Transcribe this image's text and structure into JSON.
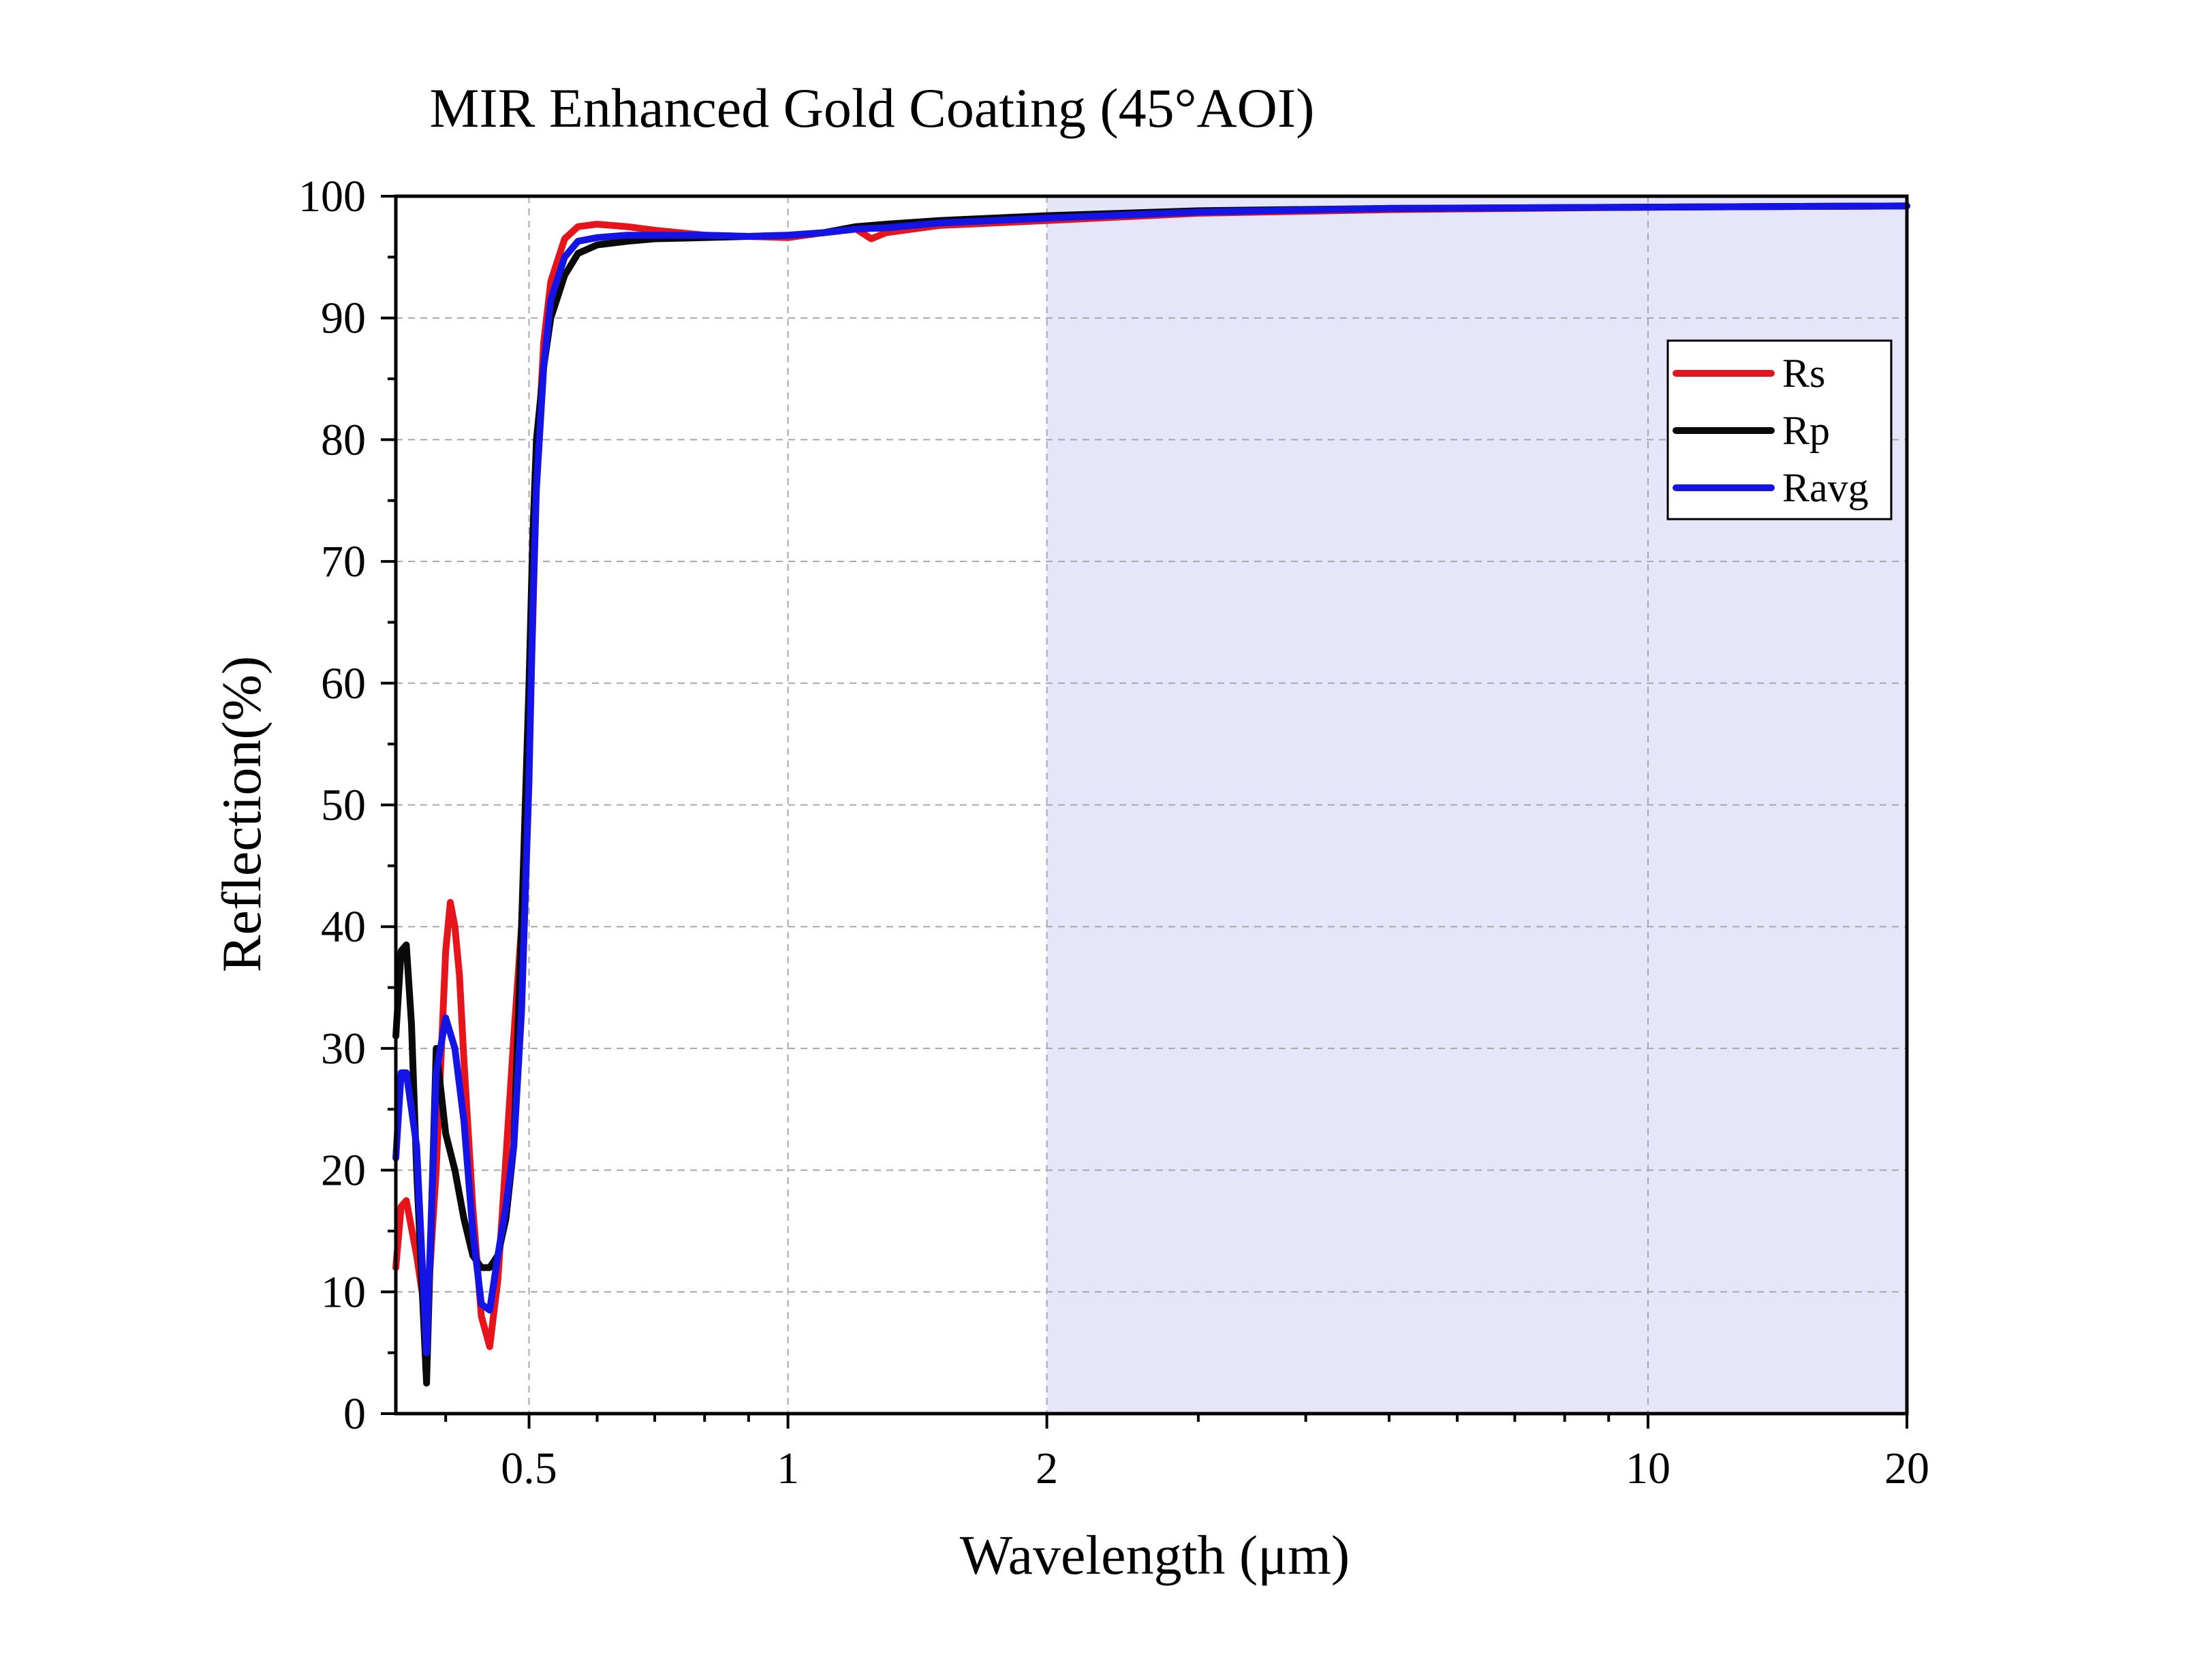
{
  "chart_data": {
    "type": "line",
    "title": "MIR Enhanced Gold Coating (45°AOI)",
    "xlabel": "Wavelength (μm)",
    "ylabel": "Reflection(%)",
    "x_scale": "log",
    "xlim": [
      0.35,
      20
    ],
    "ylim": [
      0,
      100
    ],
    "x_ticks": [
      0.5,
      1,
      2,
      10,
      20
    ],
    "x_tick_labels": [
      "0.5",
      "1",
      "2",
      "10",
      "20"
    ],
    "y_ticks": [
      0,
      10,
      20,
      30,
      40,
      50,
      60,
      70,
      80,
      90,
      100
    ],
    "y_tick_labels": [
      "0",
      "10",
      "20",
      "30",
      "40",
      "50",
      "60",
      "70",
      "80",
      "90",
      "100"
    ],
    "grid": true,
    "legend_position": "top-right",
    "highlight_region": {
      "x_from": 2,
      "x_to": 20,
      "color": "#e6e6fa"
    },
    "series": [
      {
        "name": "Rs",
        "color": "#e8141c",
        "x": [
          0.35,
          0.355,
          0.36,
          0.37,
          0.38,
          0.39,
          0.4,
          0.405,
          0.41,
          0.415,
          0.42,
          0.43,
          0.44,
          0.45,
          0.46,
          0.47,
          0.48,
          0.49,
          0.5,
          0.505,
          0.51,
          0.52,
          0.53,
          0.55,
          0.57,
          0.6,
          0.65,
          0.7,
          0.8,
          0.9,
          1.0,
          1.1,
          1.2,
          1.25,
          1.3,
          1.5,
          2.0,
          3.0,
          5.0,
          10.0,
          20.0
        ],
        "y": [
          12,
          17,
          17.5,
          13,
          7.5,
          20,
          38,
          42,
          40,
          36,
          29,
          17,
          8,
          5.5,
          11,
          21,
          31,
          40,
          55,
          65,
          77,
          88,
          93,
          96.5,
          97.5,
          97.7,
          97.5,
          97.2,
          96.8,
          96.7,
          96.6,
          97.0,
          97.3,
          96.5,
          97.0,
          97.6,
          98.0,
          98.6,
          98.9,
          99.1,
          99.2
        ]
      },
      {
        "name": "Rp",
        "color": "#0a0a0a",
        "x": [
          0.35,
          0.355,
          0.36,
          0.365,
          0.37,
          0.38,
          0.39,
          0.4,
          0.41,
          0.42,
          0.43,
          0.44,
          0.45,
          0.46,
          0.47,
          0.48,
          0.49,
          0.5,
          0.505,
          0.51,
          0.52,
          0.53,
          0.55,
          0.57,
          0.6,
          0.65,
          0.7,
          0.8,
          0.9,
          1.0,
          1.1,
          1.2,
          1.3,
          1.5,
          2.0,
          3.0,
          5.0,
          10.0,
          20.0
        ],
        "y": [
          31,
          38,
          38.5,
          32,
          20,
          2.5,
          30,
          23,
          20,
          16,
          13,
          12,
          12,
          13,
          16,
          22,
          40,
          60,
          72,
          80,
          86,
          90,
          93.5,
          95.3,
          96.0,
          96.3,
          96.5,
          96.6,
          96.7,
          96.8,
          97.0,
          97.5,
          97.7,
          98.0,
          98.4,
          98.8,
          99.0,
          99.1,
          99.2
        ]
      },
      {
        "name": "Ravg",
        "color": "#1414e6",
        "x": [
          0.35,
          0.355,
          0.36,
          0.37,
          0.38,
          0.39,
          0.4,
          0.41,
          0.42,
          0.43,
          0.44,
          0.45,
          0.46,
          0.47,
          0.48,
          0.49,
          0.5,
          0.505,
          0.51,
          0.52,
          0.53,
          0.55,
          0.57,
          0.6,
          0.65,
          0.7,
          0.8,
          0.9,
          1.0,
          1.1,
          1.2,
          1.3,
          1.5,
          2.0,
          3.0,
          5.0,
          10.0,
          20.0
        ],
        "y": [
          21,
          28,
          28,
          22,
          5,
          28,
          32.5,
          30,
          24,
          15,
          9,
          8.5,
          13,
          17,
          22,
          33,
          52,
          66,
          76,
          86,
          91.5,
          95,
          96.3,
          96.6,
          96.8,
          96.8,
          96.8,
          96.7,
          96.8,
          97.0,
          97.3,
          97.4,
          97.8,
          98.2,
          98.7,
          99.0,
          99.1,
          99.2
        ]
      }
    ]
  }
}
